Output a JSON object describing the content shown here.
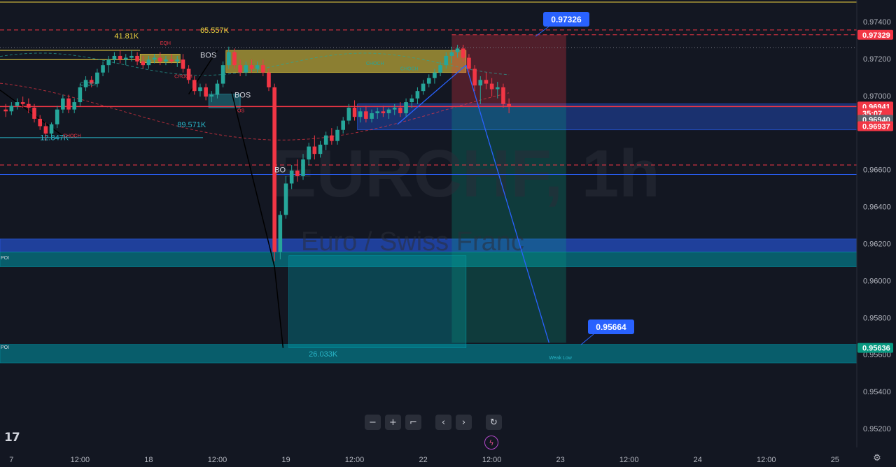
{
  "chart_data": {
    "type": "candlestick",
    "symbol": "EURCHF, 1h",
    "description": "Euro / Swiss Franc",
    "ylim": [
      0.9514,
      0.9752
    ],
    "y_ticks": [
      0.974,
      0.972,
      0.97,
      0.966,
      0.964,
      0.962,
      0.96,
      0.958,
      0.956,
      0.954,
      0.952
    ],
    "y_tick_labels": [
      "0.97400",
      "0.97200",
      "0.97000",
      "0.96600",
      "0.96400",
      "0.96200",
      "0.96000",
      "0.95800",
      "0.95600",
      "0.95400",
      "0.95200"
    ],
    "x_ticks": [
      {
        "label": "7",
        "t": -5
      },
      {
        "label": "12:00",
        "t": 7
      },
      {
        "label": "18",
        "t": 19
      },
      {
        "label": "12:00",
        "t": 31
      },
      {
        "label": "19",
        "t": 43
      },
      {
        "label": "12:00",
        "t": 55
      },
      {
        "label": "22",
        "t": 67
      },
      {
        "label": "12:00",
        "t": 79
      },
      {
        "label": "23",
        "t": 91
      },
      {
        "label": "12:00",
        "t": 103
      },
      {
        "label": "24",
        "t": 115
      },
      {
        "label": "12:00",
        "t": 127
      },
      {
        "label": "25",
        "t": 139
      }
    ],
    "x_unit_note": "t = hours since 17 00:00",
    "grid": false,
    "price_badges": [
      {
        "value": 0.97329,
        "label": "0.97329",
        "color": "#f23645"
      },
      {
        "value": 0.96941,
        "label": "0.96941",
        "color": "#f23645"
      },
      {
        "value": 0.96905,
        "label": "35:07",
        "color": "#f23645"
      },
      {
        "value": 0.9687,
        "label": "0.96940",
        "color": "#5d606b"
      },
      {
        "value": 0.96835,
        "label": "0.96937",
        "color": "#f23645"
      },
      {
        "value": 0.95636,
        "label": "0.95636",
        "color": "#089981"
      }
    ],
    "callouts": [
      {
        "label": "0.97326",
        "value": 0.97326
      },
      {
        "label": "0.95664",
        "value": 0.95664
      }
    ],
    "volume_labels": [
      {
        "label": "41.81K",
        "t": 13,
        "value": 0.9731,
        "color": "#f0d640"
      },
      {
        "label": "65.557K",
        "t": 28,
        "value": 0.9734,
        "color": "#f0d640"
      },
      {
        "label": "89.571K",
        "t": 24,
        "value": 0.9683,
        "color": "#29b6c8"
      },
      {
        "label": "12.847K",
        "t": 0,
        "value": 0.9676,
        "color": "#29b6c8"
      },
      {
        "label": "26.033K",
        "t": 47,
        "value": 0.9559,
        "color": "#29b6c8"
      }
    ],
    "structure_labels": [
      {
        "label": "BOS",
        "t": 28,
        "value": 0.97205,
        "color": "#d1d4dc",
        "size": "mid"
      },
      {
        "label": "BOS",
        "t": 34,
        "value": 0.9699,
        "color": "#d1d4dc",
        "size": "mid"
      },
      {
        "label": "BO",
        "t": 41,
        "value": 0.96585,
        "color": "#d1d4dc",
        "size": "mid"
      },
      {
        "label": "EQH",
        "t": 21,
        "value": 0.97275,
        "color": "#f23645",
        "size": "small"
      },
      {
        "label": "CHOCH",
        "t": 23.5,
        "value": 0.97095,
        "color": "#f23645",
        "size": "small"
      },
      {
        "label": "CHOCH",
        "t": 7,
        "value": 0.97055,
        "color": "#26a69a",
        "size": "small"
      },
      {
        "label": "CHOCH",
        "t": 4,
        "value": 0.96775,
        "color": "#f23645",
        "size": "small"
      },
      {
        "label": "CHOCH",
        "t": 57,
        "value": 0.97165,
        "color": "#26a69a",
        "size": "small"
      },
      {
        "label": "CHOCH",
        "t": 63,
        "value": 0.97138,
        "color": "#26a69a",
        "size": "small"
      },
      {
        "label": "OS",
        "t": 34.5,
        "value": 0.9691,
        "color": "#f23645",
        "size": "small"
      },
      {
        "label": "Weak Low",
        "t": 89,
        "value": 0.95575,
        "color": "#29b6c8",
        "size": "small"
      },
      {
        "label": "POI",
        "t": -7,
        "value": 0.96114,
        "color": "#d1d4dc",
        "size": "small"
      },
      {
        "label": "POI",
        "t": -7,
        "value": 0.9563,
        "color": "#d1d4dc",
        "size": "small"
      }
    ],
    "zones": [
      {
        "type": "supply",
        "t_start": 17.5,
        "t_end": 24.5,
        "high": 0.97225,
        "low": 0.97178,
        "color": "#f0d640"
      },
      {
        "type": "supply",
        "t_start": 32.5,
        "t_end": 74.5,
        "high": 0.97245,
        "low": 0.97125,
        "color": "#f0d640"
      },
      {
        "type": "demand",
        "t_start": 29.5,
        "t_end": 35,
        "high": 0.97008,
        "low": 0.96935,
        "color": "#29b6c8"
      },
      {
        "type": "demand",
        "t_start": 55.5,
        "t_end": 150,
        "high": 0.96955,
        "low": 0.96815,
        "color": "#2962ff"
      },
      {
        "type": "poi",
        "t_start": -7,
        "t_end": 150,
        "high": 0.96225,
        "low": 0.96155,
        "color": "#2962ff"
      },
      {
        "type": "poi",
        "t_start": -7,
        "t_end": 150,
        "high": 0.96155,
        "low": 0.96075,
        "color": "#0097a7"
      },
      {
        "type": "poi",
        "t_start": -7,
        "t_end": 150,
        "high": 0.95655,
        "low": 0.95555,
        "color": "#0097a7"
      },
      {
        "type": "target",
        "t_start": 43.5,
        "t_end": 74.5,
        "high": 0.96135,
        "low": 0.95636,
        "color": "#0097a7"
      }
    ],
    "position": {
      "t_start": 72,
      "t_end": 92,
      "entry": 0.96941,
      "stop": 0.97329,
      "target": 0.95664
    },
    "horizontal_levels": [
      {
        "value": 0.97355,
        "style": "dashed",
        "color": "#f23645",
        "t_start": -7,
        "t_end": 150
      },
      {
        "value": 0.97329,
        "style": "dashed",
        "color": "#f23645",
        "t_start": 72,
        "t_end": 150
      },
      {
        "value": 0.96625,
        "style": "dashed",
        "color": "#f23645",
        "t_start": -7,
        "t_end": 150
      },
      {
        "value": 0.96941,
        "style": "solid",
        "color": "#f23645",
        "t_start": -7,
        "t_end": 150
      },
      {
        "value": 0.97506,
        "style": "solid",
        "color": "#f0d640",
        "t_start": -7,
        "t_end": 150
      },
      {
        "value": 0.96574,
        "style": "solid",
        "color": "#2962ff",
        "t_start": -7,
        "t_end": 150
      },
      {
        "value": 0.96773,
        "style": "solid",
        "color": "#29b6c8",
        "t_start": -7,
        "t_end": 28.5
      },
      {
        "value": 0.9726,
        "style": "dotted",
        "color": "#787b86",
        "t_start": -7,
        "t_end": 150
      },
      {
        "value": 0.97245,
        "style": "solid",
        "color": "#f0d640",
        "t_start": -7,
        "t_end": 17.5
      },
      {
        "value": 0.97195,
        "style": "solid",
        "color": "#f0d640",
        "t_start": -7,
        "t_end": 17.5
      }
    ],
    "trend_lines": [
      {
        "points": [
          [
            62.5,
            0.96845
          ],
          [
            74.5,
            0.97165
          ]
        ],
        "color": "#2962ff"
      },
      {
        "points": [
          [
            74.5,
            0.97165
          ],
          [
            89,
            0.95664
          ]
        ],
        "color": "#2962ff"
      },
      {
        "points": [
          [
            -7,
            0.9703
          ],
          [
            5,
            0.9676
          ]
        ],
        "color": "#000000"
      },
      {
        "points": [
          [
            33.5,
            0.9702
          ],
          [
            41,
            0.96075
          ]
        ],
        "color": "#000000"
      },
      {
        "points": [
          [
            41,
            0.96075
          ],
          [
            42.5,
            0.95636
          ]
        ],
        "color": "#000000"
      },
      {
        "points": [
          [
            26,
            0.97008
          ],
          [
            31,
            0.97245
          ]
        ],
        "color": "#000000"
      }
    ],
    "candles": [
      {
        "t": -6,
        "o": 0.96925,
        "h": 0.96955,
        "l": 0.96885,
        "c": 0.96915
      },
      {
        "t": -5,
        "o": 0.96915,
        "h": 0.96965,
        "l": 0.96895,
        "c": 0.96945
      },
      {
        "t": -4,
        "o": 0.96945,
        "h": 0.96985,
        "l": 0.96925,
        "c": 0.96965
      },
      {
        "t": -3,
        "o": 0.96965,
        "h": 0.96995,
        "l": 0.96935,
        "c": 0.96955
      },
      {
        "t": -2,
        "o": 0.96955,
        "h": 0.96985,
        "l": 0.96905,
        "c": 0.96935
      },
      {
        "t": -1,
        "o": 0.96935,
        "h": 0.96955,
        "l": 0.96855,
        "c": 0.96875
      },
      {
        "t": 0,
        "o": 0.96875,
        "h": 0.96895,
        "l": 0.96815,
        "c": 0.96835
      },
      {
        "t": 1,
        "o": 0.96835,
        "h": 0.96855,
        "l": 0.96755,
        "c": 0.96795
      },
      {
        "t": 2,
        "o": 0.96795,
        "h": 0.96855,
        "l": 0.96775,
        "c": 0.96845
      },
      {
        "t": 3,
        "o": 0.96845,
        "h": 0.96945,
        "l": 0.96825,
        "c": 0.96925
      },
      {
        "t": 4,
        "o": 0.96925,
        "h": 0.97005,
        "l": 0.96905,
        "c": 0.96985
      },
      {
        "t": 5,
        "o": 0.96985,
        "h": 0.97005,
        "l": 0.96905,
        "c": 0.96925
      },
      {
        "t": 6,
        "o": 0.96925,
        "h": 0.96985,
        "l": 0.96905,
        "c": 0.96965
      },
      {
        "t": 7,
        "o": 0.96965,
        "h": 0.97065,
        "l": 0.96945,
        "c": 0.97045
      },
      {
        "t": 8,
        "o": 0.97045,
        "h": 0.97105,
        "l": 0.97025,
        "c": 0.97085
      },
      {
        "t": 9,
        "o": 0.97085,
        "h": 0.97105,
        "l": 0.97045,
        "c": 0.97065
      },
      {
        "t": 10,
        "o": 0.97065,
        "h": 0.97145,
        "l": 0.97045,
        "c": 0.97125
      },
      {
        "t": 11,
        "o": 0.97125,
        "h": 0.97185,
        "l": 0.97105,
        "c": 0.97165
      },
      {
        "t": 12,
        "o": 0.97165,
        "h": 0.97215,
        "l": 0.97125,
        "c": 0.97195
      },
      {
        "t": 13,
        "o": 0.97195,
        "h": 0.97235,
        "l": 0.97175,
        "c": 0.97215
      },
      {
        "t": 14,
        "o": 0.97215,
        "h": 0.97245,
        "l": 0.97175,
        "c": 0.97195
      },
      {
        "t": 15,
        "o": 0.97195,
        "h": 0.97225,
        "l": 0.97165,
        "c": 0.97205
      },
      {
        "t": 16,
        "o": 0.97205,
        "h": 0.97245,
        "l": 0.97185,
        "c": 0.97215
      },
      {
        "t": 17,
        "o": 0.97215,
        "h": 0.97235,
        "l": 0.97165,
        "c": 0.97185
      },
      {
        "t": 18,
        "o": 0.97185,
        "h": 0.97215,
        "l": 0.97145,
        "c": 0.97165
      },
      {
        "t": 19,
        "o": 0.97165,
        "h": 0.97215,
        "l": 0.97145,
        "c": 0.97195
      },
      {
        "t": 20,
        "o": 0.97195,
        "h": 0.97225,
        "l": 0.97175,
        "c": 0.97205
      },
      {
        "t": 21,
        "o": 0.97205,
        "h": 0.97235,
        "l": 0.97165,
        "c": 0.97185
      },
      {
        "t": 22,
        "o": 0.97185,
        "h": 0.97215,
        "l": 0.97165,
        "c": 0.97195
      },
      {
        "t": 23,
        "o": 0.97195,
        "h": 0.97225,
        "l": 0.97175,
        "c": 0.97185
      },
      {
        "t": 24,
        "o": 0.97185,
        "h": 0.97215,
        "l": 0.97155,
        "c": 0.97195
      },
      {
        "t": 25,
        "o": 0.97195,
        "h": 0.97225,
        "l": 0.97125,
        "c": 0.97145
      },
      {
        "t": 26,
        "o": 0.97145,
        "h": 0.97165,
        "l": 0.97065,
        "c": 0.97085
      },
      {
        "t": 27,
        "o": 0.97085,
        "h": 0.97105,
        "l": 0.97005,
        "c": 0.97025
      },
      {
        "t": 28,
        "o": 0.97025,
        "h": 0.97065,
        "l": 0.96995,
        "c": 0.97045
      },
      {
        "t": 29,
        "o": 0.97045,
        "h": 0.97065,
        "l": 0.96975,
        "c": 0.96995
      },
      {
        "t": 30,
        "o": 0.96995,
        "h": 0.97025,
        "l": 0.96965,
        "c": 0.97005
      },
      {
        "t": 31,
        "o": 0.97005,
        "h": 0.97085,
        "l": 0.96985,
        "c": 0.97065
      },
      {
        "t": 32,
        "o": 0.97065,
        "h": 0.97185,
        "l": 0.97045,
        "c": 0.97165
      },
      {
        "t": 33,
        "o": 0.97165,
        "h": 0.97265,
        "l": 0.97145,
        "c": 0.97235
      },
      {
        "t": 34,
        "o": 0.97235,
        "h": 0.97255,
        "l": 0.97145,
        "c": 0.97165
      },
      {
        "t": 35,
        "o": 0.97165,
        "h": 0.97195,
        "l": 0.97105,
        "c": 0.97125
      },
      {
        "t": 36,
        "o": 0.97125,
        "h": 0.97185,
        "l": 0.97105,
        "c": 0.97165
      },
      {
        "t": 37,
        "o": 0.97165,
        "h": 0.97195,
        "l": 0.97125,
        "c": 0.97145
      },
      {
        "t": 38,
        "o": 0.97145,
        "h": 0.97185,
        "l": 0.97125,
        "c": 0.97165
      },
      {
        "t": 39,
        "o": 0.97165,
        "h": 0.97195,
        "l": 0.97105,
        "c": 0.97125
      },
      {
        "t": 40,
        "o": 0.97125,
        "h": 0.97145,
        "l": 0.97025,
        "c": 0.97045
      },
      {
        "t": 41,
        "o": 0.97045,
        "h": 0.97065,
        "l": 0.96105,
        "c": 0.96155
      },
      {
        "t": 42,
        "o": 0.96155,
        "h": 0.96375,
        "l": 0.96115,
        "c": 0.96355
      },
      {
        "t": 43,
        "o": 0.96355,
        "h": 0.96565,
        "l": 0.96335,
        "c": 0.96525
      },
      {
        "t": 44,
        "o": 0.96525,
        "h": 0.96625,
        "l": 0.96495,
        "c": 0.96595
      },
      {
        "t": 45,
        "o": 0.96595,
        "h": 0.96655,
        "l": 0.96535,
        "c": 0.96565
      },
      {
        "t": 46,
        "o": 0.96565,
        "h": 0.96685,
        "l": 0.96545,
        "c": 0.96655
      },
      {
        "t": 47,
        "o": 0.96655,
        "h": 0.96745,
        "l": 0.96625,
        "c": 0.96725
      },
      {
        "t": 48,
        "o": 0.96725,
        "h": 0.96785,
        "l": 0.96655,
        "c": 0.96685
      },
      {
        "t": 49,
        "o": 0.96685,
        "h": 0.96755,
        "l": 0.96665,
        "c": 0.96735
      },
      {
        "t": 50,
        "o": 0.96735,
        "h": 0.96805,
        "l": 0.96705,
        "c": 0.96785
      },
      {
        "t": 51,
        "o": 0.96785,
        "h": 0.96825,
        "l": 0.96735,
        "c": 0.96755
      },
      {
        "t": 52,
        "o": 0.96755,
        "h": 0.96835,
        "l": 0.96735,
        "c": 0.96815
      },
      {
        "t": 53,
        "o": 0.96815,
        "h": 0.96885,
        "l": 0.96795,
        "c": 0.96865
      },
      {
        "t": 54,
        "o": 0.96865,
        "h": 0.96955,
        "l": 0.96845,
        "c": 0.96935
      },
      {
        "t": 55,
        "o": 0.96935,
        "h": 0.96975,
        "l": 0.96865,
        "c": 0.96885
      },
      {
        "t": 56,
        "o": 0.96885,
        "h": 0.96935,
        "l": 0.96855,
        "c": 0.96915
      },
      {
        "t": 57,
        "o": 0.96915,
        "h": 0.96945,
        "l": 0.96855,
        "c": 0.96875
      },
      {
        "t": 58,
        "o": 0.96875,
        "h": 0.96925,
        "l": 0.96855,
        "c": 0.96905
      },
      {
        "t": 59,
        "o": 0.96905,
        "h": 0.96935,
        "l": 0.96875,
        "c": 0.96915
      },
      {
        "t": 60,
        "o": 0.96915,
        "h": 0.96945,
        "l": 0.96885,
        "c": 0.96905
      },
      {
        "t": 61,
        "o": 0.96905,
        "h": 0.96935,
        "l": 0.96875,
        "c": 0.96925
      },
      {
        "t": 62,
        "o": 0.96925,
        "h": 0.96955,
        "l": 0.96895,
        "c": 0.96935
      },
      {
        "t": 63,
        "o": 0.96935,
        "h": 0.96965,
        "l": 0.96885,
        "c": 0.96905
      },
      {
        "t": 64,
        "o": 0.96905,
        "h": 0.96985,
        "l": 0.96885,
        "c": 0.96965
      },
      {
        "t": 65,
        "o": 0.96965,
        "h": 0.97005,
        "l": 0.96935,
        "c": 0.96985
      },
      {
        "t": 66,
        "o": 0.96985,
        "h": 0.97045,
        "l": 0.96955,
        "c": 0.97025
      },
      {
        "t": 67,
        "o": 0.97025,
        "h": 0.97085,
        "l": 0.97005,
        "c": 0.97065
      },
      {
        "t": 68,
        "o": 0.97065,
        "h": 0.97115,
        "l": 0.97045,
        "c": 0.97095
      },
      {
        "t": 69,
        "o": 0.97095,
        "h": 0.97145,
        "l": 0.97065,
        "c": 0.97125
      },
      {
        "t": 70,
        "o": 0.97125,
        "h": 0.97185,
        "l": 0.97105,
        "c": 0.97165
      },
      {
        "t": 71,
        "o": 0.97165,
        "h": 0.97235,
        "l": 0.97145,
        "c": 0.97215
      },
      {
        "t": 72,
        "o": 0.97215,
        "h": 0.97265,
        "l": 0.97175,
        "c": 0.97235
      },
      {
        "t": 73,
        "o": 0.97235,
        "h": 0.97275,
        "l": 0.97205,
        "c": 0.97255
      },
      {
        "t": 74,
        "o": 0.97255,
        "h": 0.97275,
        "l": 0.97185,
        "c": 0.97205
      },
      {
        "t": 75,
        "o": 0.97205,
        "h": 0.97225,
        "l": 0.97125,
        "c": 0.97145
      },
      {
        "t": 76,
        "o": 0.97145,
        "h": 0.97165,
        "l": 0.97025,
        "c": 0.97055
      },
      {
        "t": 77,
        "o": 0.97055,
        "h": 0.97105,
        "l": 0.96955,
        "c": 0.97085
      },
      {
        "t": 78,
        "o": 0.97085,
        "h": 0.97125,
        "l": 0.97035,
        "c": 0.97065
      },
      {
        "t": 79,
        "o": 0.97065,
        "h": 0.97095,
        "l": 0.96995,
        "c": 0.97035
      },
      {
        "t": 80,
        "o": 0.97035,
        "h": 0.97075,
        "l": 0.96985,
        "c": 0.97045
      },
      {
        "t": 81,
        "o": 0.97045,
        "h": 0.97065,
        "l": 0.96935,
        "c": 0.96955
      },
      {
        "t": 82,
        "o": 0.96955,
        "h": 0.96985,
        "l": 0.96905,
        "c": 0.96941
      }
    ]
  },
  "toolbar": {
    "zoom_out_icon": "minus-icon",
    "zoom_in_icon": "plus-icon",
    "reset_icon": "fit-icon",
    "scroll_left_icon": "chevron-left-icon",
    "scroll_right_icon": "chevron-right-icon",
    "refresh_icon": "refresh-icon"
  },
  "colors": {
    "background": "#131722",
    "bull": "#26a69a",
    "bear": "#f23645",
    "axis_text": "#b2b5be",
    "accent_blue": "#2962ff"
  }
}
